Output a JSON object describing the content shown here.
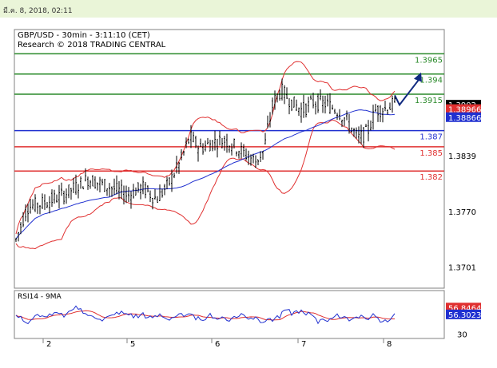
{
  "header": {
    "timestamp": "มี.ค. 8, 2018, 02:11"
  },
  "chart_data": {
    "type": "candlestick",
    "title": "GBP/USD - 30min - 3:11:10 (CET)",
    "subtitle": "Research © 2018 TRADING CENTRAL",
    "x_tick_labels": [
      "2",
      "5",
      "6",
      "7",
      "8"
    ],
    "y_tick_labels": [
      "1.3839",
      "1.3770",
      "1.3701"
    ],
    "ylim": [
      1.3675,
      1.3995
    ],
    "current_price": {
      "value": 1.3902,
      "label": "1.3902"
    },
    "indicator_badges": [
      {
        "value": 1.38966,
        "label": "1.38966",
        "color": "#e03030"
      },
      {
        "value": 1.38866,
        "label": "1.38866",
        "color": "#2030d0"
      }
    ],
    "resistance_levels": [
      {
        "value": 1.3965,
        "label": "1.3965",
        "color": "#2a8a2a"
      },
      {
        "value": 1.394,
        "label": "1.394",
        "color": "#2a8a2a"
      },
      {
        "value": 1.3915,
        "label": "1.3915",
        "color": "#2a8a2a"
      }
    ],
    "pivot_level": {
      "value": 1.387,
      "label": "1.387",
      "color": "#2030d0"
    },
    "support_levels": [
      {
        "value": 1.385,
        "label": "1.385",
        "color": "#e03030"
      },
      {
        "value": 1.382,
        "label": "1.382",
        "color": "#e03030"
      }
    ],
    "forecast_arrow_target": 1.394,
    "rsi_panel": {
      "title": "RSI14 - 9MA",
      "ylim": [
        25,
        80
      ],
      "tick_labels": [
        "30"
      ],
      "rsi_value": {
        "value": 56.3023,
        "label": "56.3023",
        "color": "#2030d0"
      },
      "ma_value": {
        "value": 56.8464,
        "label": "56.8464",
        "color": "#e03030"
      }
    },
    "grid": false,
    "colors": {
      "candles": "#000000",
      "bollinger": "#e03030",
      "moving_average": "#2030d0",
      "frame": "#808080"
    }
  }
}
